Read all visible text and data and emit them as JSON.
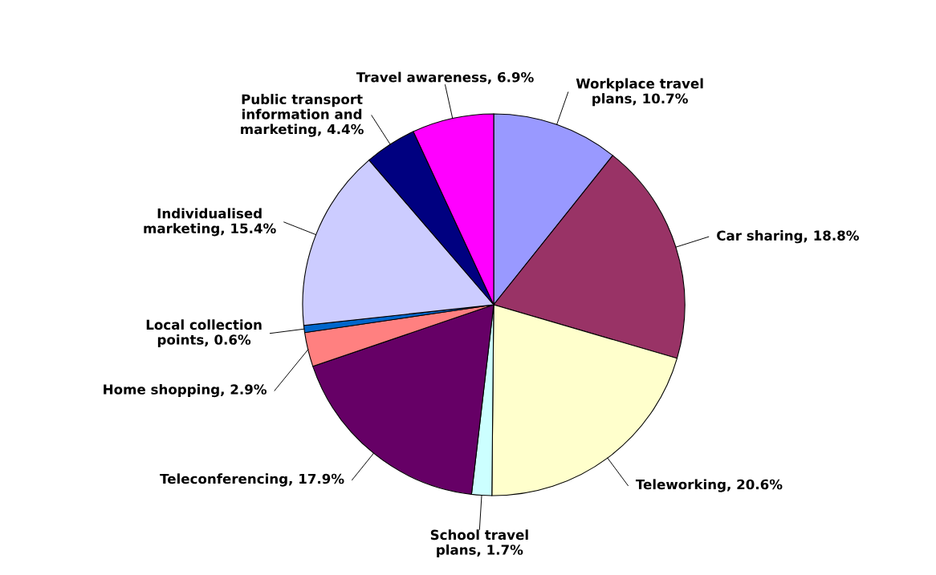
{
  "chart_data": {
    "type": "pie",
    "categories": [
      "Workplace travel plans",
      "Car sharing",
      "Teleworking",
      "School travel plans",
      "Teleconferencing",
      "Home shopping",
      "Local collection points",
      "Individualised marketing",
      "Public transport information and marketing",
      "Travel awareness"
    ],
    "value_labels": [
      "10.7%",
      "18.8%",
      "20.6%",
      "1.7%",
      "17.9%",
      "2.9%",
      "0.6%",
      "15.4%",
      "4.4%",
      "6.9%"
    ],
    "values": [
      10.7,
      18.8,
      20.6,
      1.7,
      17.9,
      2.9,
      0.6,
      15.4,
      4.4,
      6.9
    ],
    "colors": [
      "#9999ff",
      "#993366",
      "#ffffcc",
      "#ccffff",
      "#660066",
      "#ff8080",
      "#0066cc",
      "#ccccff",
      "#000080",
      "#ff00ff"
    ]
  }
}
